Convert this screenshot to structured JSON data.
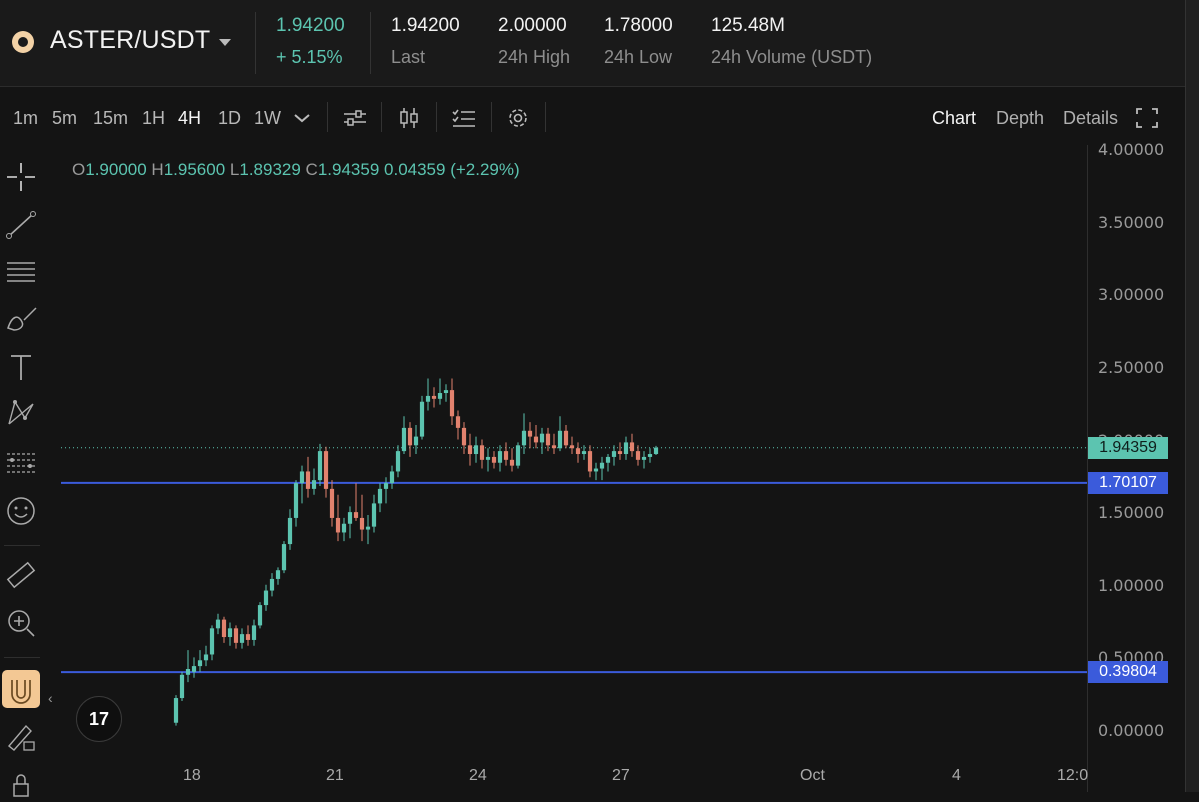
{
  "header": {
    "pair": "ASTER/USDT",
    "price": "1.94200",
    "change": "+ 5.15%",
    "stats": [
      {
        "value": "1.94200",
        "label": "Last"
      },
      {
        "value": "2.00000",
        "label": "24h High"
      },
      {
        "value": "1.78000",
        "label": "24h Low"
      },
      {
        "value": "125.48M",
        "label": "24h Volume (USDT)"
      }
    ]
  },
  "toolbar": {
    "timeframes": [
      "1m",
      "5m",
      "15m",
      "1H",
      "4H",
      "1D",
      "1W"
    ],
    "active_timeframe": "4H",
    "views": [
      "Chart",
      "Depth",
      "Details"
    ],
    "active_view": "Chart"
  },
  "ohlc": {
    "o_label": "O",
    "o": "1.90000",
    "h_label": "H",
    "h": "1.95600",
    "l_label": "L",
    "l": "1.89329",
    "c_label": "C",
    "c": "1.94359",
    "change": "0.04359 (+2.29%)"
  },
  "price_tags": {
    "current": "1.94359",
    "line_upper": "1.70107",
    "line_lower": "0.39804"
  },
  "colors": {
    "up": "#5cc4b0",
    "down": "#e2826e",
    "hline": "#3b5bdb",
    "current_tag": "#5cc4b0",
    "line_tag": "#3b5bdb"
  },
  "logo_text": "17",
  "chart_data": {
    "type": "candlestick",
    "y_ticks": [
      "4.00000",
      "3.50000",
      "3.00000",
      "2.50000",
      "2.00000",
      "1.50000",
      "1.00000",
      "0.50000",
      "0.00000"
    ],
    "x_ticks": [
      "18",
      "21",
      "24",
      "27",
      "Oct",
      "4",
      "12:0"
    ],
    "ylim": [
      0,
      4
    ],
    "horizontal_lines": [
      1.70107,
      0.39804
    ],
    "current_price": 1.94359,
    "candles": [
      {
        "o": 0.05,
        "h": 0.24,
        "l": 0.03,
        "c": 0.22
      },
      {
        "o": 0.22,
        "h": 0.4,
        "l": 0.2,
        "c": 0.38
      },
      {
        "o": 0.38,
        "h": 0.55,
        "l": 0.33,
        "c": 0.42
      },
      {
        "o": 0.4,
        "h": 0.5,
        "l": 0.36,
        "c": 0.44
      },
      {
        "o": 0.44,
        "h": 0.55,
        "l": 0.4,
        "c": 0.48
      },
      {
        "o": 0.48,
        "h": 0.58,
        "l": 0.44,
        "c": 0.52
      },
      {
        "o": 0.52,
        "h": 0.72,
        "l": 0.48,
        "c": 0.7
      },
      {
        "o": 0.7,
        "h": 0.8,
        "l": 0.66,
        "c": 0.76
      },
      {
        "o": 0.76,
        "h": 0.78,
        "l": 0.6,
        "c": 0.64
      },
      {
        "o": 0.64,
        "h": 0.74,
        "l": 0.58,
        "c": 0.7
      },
      {
        "o": 0.7,
        "h": 0.72,
        "l": 0.56,
        "c": 0.6
      },
      {
        "o": 0.6,
        "h": 0.7,
        "l": 0.56,
        "c": 0.66
      },
      {
        "o": 0.66,
        "h": 0.72,
        "l": 0.58,
        "c": 0.62
      },
      {
        "o": 0.62,
        "h": 0.76,
        "l": 0.58,
        "c": 0.72
      },
      {
        "o": 0.72,
        "h": 0.88,
        "l": 0.7,
        "c": 0.86
      },
      {
        "o": 0.86,
        "h": 1.0,
        "l": 0.82,
        "c": 0.96
      },
      {
        "o": 0.96,
        "h": 1.08,
        "l": 0.92,
        "c": 1.04
      },
      {
        "o": 1.04,
        "h": 1.12,
        "l": 1.0,
        "c": 1.1
      },
      {
        "o": 1.1,
        "h": 1.3,
        "l": 1.08,
        "c": 1.28
      },
      {
        "o": 1.28,
        "h": 1.52,
        "l": 1.24,
        "c": 1.46
      },
      {
        "o": 1.46,
        "h": 1.72,
        "l": 1.4,
        "c": 1.7
      },
      {
        "o": 1.7,
        "h": 1.82,
        "l": 1.56,
        "c": 1.78
      },
      {
        "o": 1.78,
        "h": 1.88,
        "l": 1.6,
        "c": 1.66
      },
      {
        "o": 1.66,
        "h": 1.8,
        "l": 1.62,
        "c": 1.72
      },
      {
        "o": 1.72,
        "h": 1.97,
        "l": 1.68,
        "c": 1.92
      },
      {
        "o": 1.92,
        "h": 1.95,
        "l": 1.6,
        "c": 1.66
      },
      {
        "o": 1.66,
        "h": 1.72,
        "l": 1.4,
        "c": 1.46
      },
      {
        "o": 1.46,
        "h": 1.62,
        "l": 1.3,
        "c": 1.36
      },
      {
        "o": 1.36,
        "h": 1.46,
        "l": 1.3,
        "c": 1.42
      },
      {
        "o": 1.42,
        "h": 1.54,
        "l": 1.32,
        "c": 1.5
      },
      {
        "o": 1.5,
        "h": 1.7,
        "l": 1.44,
        "c": 1.46
      },
      {
        "o": 1.46,
        "h": 1.62,
        "l": 1.3,
        "c": 1.38
      },
      {
        "o": 1.38,
        "h": 1.48,
        "l": 1.28,
        "c": 1.4
      },
      {
        "o": 1.4,
        "h": 1.62,
        "l": 1.36,
        "c": 1.56
      },
      {
        "o": 1.56,
        "h": 1.7,
        "l": 1.5,
        "c": 1.66
      },
      {
        "o": 1.66,
        "h": 1.74,
        "l": 1.56,
        "c": 1.7
      },
      {
        "o": 1.7,
        "h": 1.82,
        "l": 1.66,
        "c": 1.78
      },
      {
        "o": 1.78,
        "h": 1.96,
        "l": 1.74,
        "c": 1.92
      },
      {
        "o": 1.92,
        "h": 2.16,
        "l": 1.9,
        "c": 2.08
      },
      {
        "o": 2.08,
        "h": 2.12,
        "l": 1.88,
        "c": 1.96
      },
      {
        "o": 1.96,
        "h": 2.1,
        "l": 1.9,
        "c": 2.02
      },
      {
        "o": 2.02,
        "h": 2.3,
        "l": 2.0,
        "c": 2.26
      },
      {
        "o": 2.26,
        "h": 2.42,
        "l": 2.2,
        "c": 2.3
      },
      {
        "o": 2.3,
        "h": 2.36,
        "l": 2.22,
        "c": 2.28
      },
      {
        "o": 2.28,
        "h": 2.42,
        "l": 2.24,
        "c": 2.32
      },
      {
        "o": 2.32,
        "h": 2.38,
        "l": 2.26,
        "c": 2.34
      },
      {
        "o": 2.34,
        "h": 2.42,
        "l": 2.1,
        "c": 2.16
      },
      {
        "o": 2.16,
        "h": 2.2,
        "l": 2.0,
        "c": 2.08
      },
      {
        "o": 2.08,
        "h": 2.12,
        "l": 1.9,
        "c": 1.96
      },
      {
        "o": 1.96,
        "h": 2.04,
        "l": 1.82,
        "c": 1.9
      },
      {
        "o": 1.9,
        "h": 2.02,
        "l": 1.84,
        "c": 1.96
      },
      {
        "o": 1.96,
        "h": 2.0,
        "l": 1.8,
        "c": 1.86
      },
      {
        "o": 1.86,
        "h": 1.94,
        "l": 1.78,
        "c": 1.88
      },
      {
        "o": 1.88,
        "h": 1.92,
        "l": 1.8,
        "c": 1.84
      },
      {
        "o": 1.84,
        "h": 1.96,
        "l": 1.78,
        "c": 1.92
      },
      {
        "o": 1.92,
        "h": 1.98,
        "l": 1.82,
        "c": 1.86
      },
      {
        "o": 1.86,
        "h": 1.94,
        "l": 1.78,
        "c": 1.82
      },
      {
        "o": 1.82,
        "h": 1.98,
        "l": 1.8,
        "c": 1.96
      },
      {
        "o": 1.96,
        "h": 2.18,
        "l": 1.9,
        "c": 2.06
      },
      {
        "o": 2.06,
        "h": 2.12,
        "l": 1.94,
        "c": 2.02
      },
      {
        "o": 2.02,
        "h": 2.1,
        "l": 1.94,
        "c": 1.98
      },
      {
        "o": 1.98,
        "h": 2.08,
        "l": 1.9,
        "c": 2.04
      },
      {
        "o": 2.04,
        "h": 2.08,
        "l": 1.92,
        "c": 1.96
      },
      {
        "o": 1.96,
        "h": 2.04,
        "l": 1.9,
        "c": 1.94
      },
      {
        "o": 1.94,
        "h": 2.16,
        "l": 1.92,
        "c": 2.06
      },
      {
        "o": 2.06,
        "h": 2.1,
        "l": 1.94,
        "c": 1.96
      },
      {
        "o": 1.96,
        "h": 2.02,
        "l": 1.9,
        "c": 1.94
      },
      {
        "o": 1.94,
        "h": 1.98,
        "l": 1.84,
        "c": 1.9
      },
      {
        "o": 1.9,
        "h": 1.96,
        "l": 1.86,
        "c": 1.92
      },
      {
        "o": 1.92,
        "h": 1.96,
        "l": 1.74,
        "c": 1.78
      },
      {
        "o": 1.78,
        "h": 1.84,
        "l": 1.72,
        "c": 1.8
      },
      {
        "o": 1.8,
        "h": 1.88,
        "l": 1.72,
        "c": 1.84
      },
      {
        "o": 1.84,
        "h": 1.9,
        "l": 1.78,
        "c": 1.88
      },
      {
        "o": 1.88,
        "h": 1.96,
        "l": 1.82,
        "c": 1.92
      },
      {
        "o": 1.92,
        "h": 1.98,
        "l": 1.86,
        "c": 1.9
      },
      {
        "o": 1.9,
        "h": 2.02,
        "l": 1.86,
        "c": 1.98
      },
      {
        "o": 1.98,
        "h": 2.04,
        "l": 1.88,
        "c": 1.92
      },
      {
        "o": 1.92,
        "h": 1.96,
        "l": 1.82,
        "c": 1.86
      },
      {
        "o": 1.86,
        "h": 1.92,
        "l": 1.8,
        "c": 1.88
      },
      {
        "o": 1.88,
        "h": 1.94,
        "l": 1.84,
        "c": 1.9
      },
      {
        "o": 1.9,
        "h": 1.956,
        "l": 1.893,
        "c": 1.944
      }
    ]
  }
}
